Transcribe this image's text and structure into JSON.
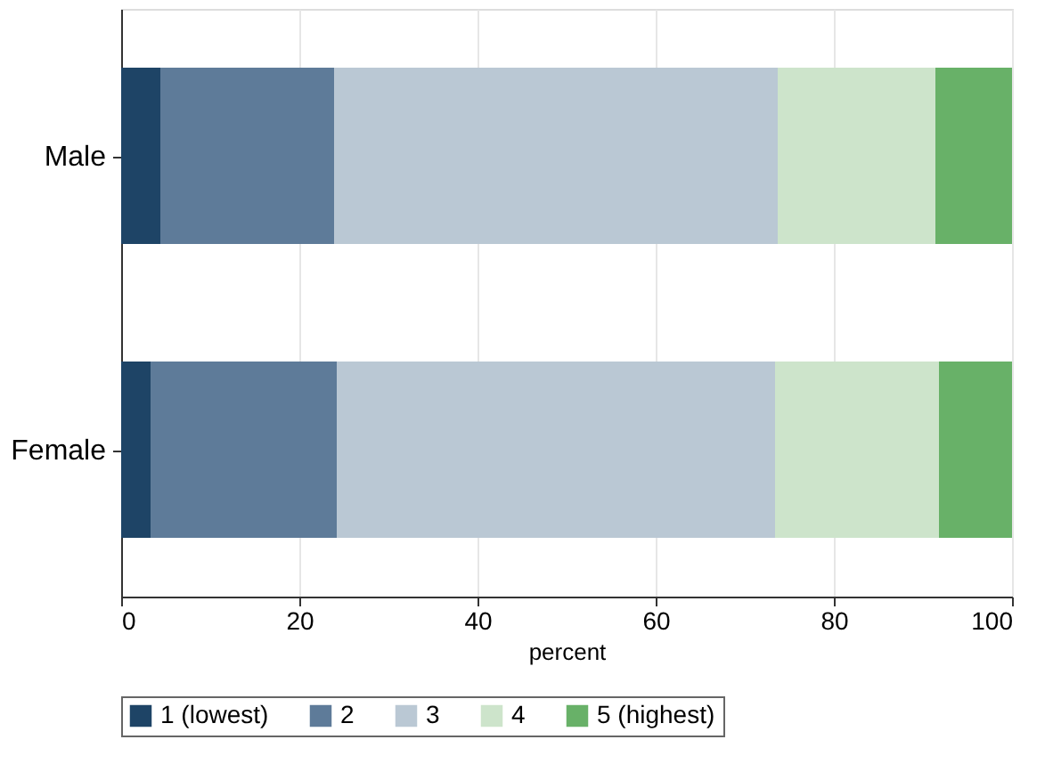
{
  "chart_data": {
    "type": "bar",
    "orientation": "horizontal",
    "stacked": true,
    "categories": [
      "Male",
      "Female"
    ],
    "xlabel": "percent",
    "series": [
      {
        "name": "1 (lowest)",
        "color": "#1e4466",
        "values": [
          4.4,
          3.3
        ]
      },
      {
        "name": "2",
        "color": "#5e7b99",
        "values": [
          19.5,
          20.9
        ]
      },
      {
        "name": "3",
        "color": "#bac8d4",
        "values": [
          49.8,
          49.2
        ]
      },
      {
        "name": "4",
        "color": "#cde4cb",
        "values": [
          17.7,
          18.4
        ]
      },
      {
        "name": "5 (highest)",
        "color": "#68b168",
        "values": [
          8.6,
          8.2
        ]
      }
    ],
    "xlim": [
      0,
      100
    ],
    "xticks": [
      0,
      20,
      40,
      60,
      80,
      100
    ],
    "grid": "x",
    "legend": "bottom"
  }
}
